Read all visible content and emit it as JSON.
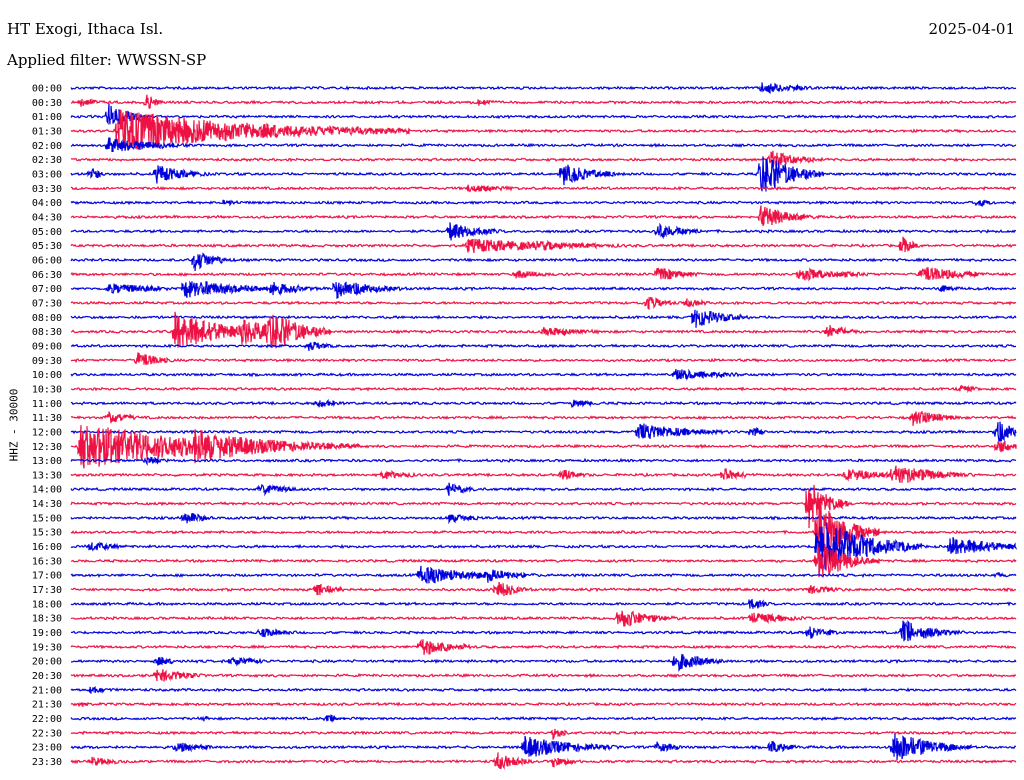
{
  "header": {
    "station": "HT Exogi, Ithaca Isl.",
    "date": "2025-04-01",
    "filter": "Applied filter: WWSSN-SP"
  },
  "chart_data": {
    "type": "line",
    "title": "HT Exogi, Ithaca Isl.",
    "ylabel": "HHZ - 30000",
    "trace_colors": [
      "#0000dd",
      "#ee1144"
    ],
    "row_labels": [
      "00:00",
      "00:30",
      "01:00",
      "01:30",
      "02:00",
      "02:30",
      "03:00",
      "03:30",
      "04:00",
      "04:30",
      "05:00",
      "05:30",
      "06:00",
      "06:30",
      "07:00",
      "07:30",
      "08:00",
      "08:30",
      "09:00",
      "09:30",
      "10:00",
      "10:30",
      "11:00",
      "11:30",
      "12:00",
      "12:30",
      "13:00",
      "13:30",
      "14:00",
      "14:30",
      "15:00",
      "15:30",
      "16:00",
      "16:30",
      "17:00",
      "17:30",
      "18:00",
      "18:30",
      "19:00",
      "19:30",
      "20:00",
      "20:30",
      "21:00",
      "21:30",
      "22:00",
      "22:30",
      "23:00",
      "23:30"
    ],
    "events": [
      {
        "row": 0,
        "x": 0.73,
        "amp": 6,
        "dur": 0.04
      },
      {
        "row": 1,
        "x": 0.01,
        "amp": 5,
        "dur": 0.02
      },
      {
        "row": 1,
        "x": 0.43,
        "amp": 4,
        "dur": 0.02
      },
      {
        "row": 1,
        "x": 0.08,
        "amp": 9,
        "dur": 0.01
      },
      {
        "row": 2,
        "x": 0.04,
        "amp": 14,
        "dur": 0.02
      },
      {
        "row": 3,
        "x": 0.05,
        "amp": 22,
        "dur": 0.14
      },
      {
        "row": 4,
        "x": 0.04,
        "amp": 8,
        "dur": 0.05
      },
      {
        "row": 5,
        "x": 0.74,
        "amp": 10,
        "dur": 0.03
      },
      {
        "row": 6,
        "x": 0.02,
        "amp": 8,
        "dur": 0.01
      },
      {
        "row": 6,
        "x": 0.09,
        "amp": 10,
        "dur": 0.03
      },
      {
        "row": 6,
        "x": 0.52,
        "amp": 12,
        "dur": 0.03
      },
      {
        "row": 6,
        "x": 0.73,
        "amp": 24,
        "dur": 0.03
      },
      {
        "row": 7,
        "x": 0.42,
        "amp": 4,
        "dur": 0.05
      },
      {
        "row": 8,
        "x": 0.16,
        "amp": 3,
        "dur": 0.03
      },
      {
        "row": 8,
        "x": 0.96,
        "amp": 6,
        "dur": 0.01
      },
      {
        "row": 9,
        "x": 0.73,
        "amp": 12,
        "dur": 0.03
      },
      {
        "row": 10,
        "x": 0.4,
        "amp": 10,
        "dur": 0.03
      },
      {
        "row": 10,
        "x": 0.62,
        "amp": 8,
        "dur": 0.03
      },
      {
        "row": 11,
        "x": 0.42,
        "amp": 8,
        "dur": 0.08
      },
      {
        "row": 11,
        "x": 0.49,
        "amp": 5,
        "dur": 0.08
      },
      {
        "row": 11,
        "x": 0.88,
        "amp": 10,
        "dur": 0.01
      },
      {
        "row": 12,
        "x": 0.13,
        "amp": 12,
        "dur": 0.02
      },
      {
        "row": 13,
        "x": 0.47,
        "amp": 5,
        "dur": 0.03
      },
      {
        "row": 13,
        "x": 0.62,
        "amp": 7,
        "dur": 0.03
      },
      {
        "row": 13,
        "x": 0.77,
        "amp": 7,
        "dur": 0.05
      },
      {
        "row": 13,
        "x": 0.9,
        "amp": 9,
        "dur": 0.04
      },
      {
        "row": 14,
        "x": 0.04,
        "amp": 6,
        "dur": 0.05
      },
      {
        "row": 14,
        "x": 0.12,
        "amp": 10,
        "dur": 0.06
      },
      {
        "row": 14,
        "x": 0.21,
        "amp": 8,
        "dur": 0.03
      },
      {
        "row": 14,
        "x": 0.28,
        "amp": 10,
        "dur": 0.04
      },
      {
        "row": 14,
        "x": 0.92,
        "amp": 4,
        "dur": 0.02
      },
      {
        "row": 15,
        "x": 0.61,
        "amp": 7,
        "dur": 0.02
      },
      {
        "row": 15,
        "x": 0.65,
        "amp": 5,
        "dur": 0.02
      },
      {
        "row": 16,
        "x": 0.66,
        "amp": 11,
        "dur": 0.03
      },
      {
        "row": 17,
        "x": 0.11,
        "amp": 20,
        "dur": 0.05
      },
      {
        "row": 17,
        "x": 0.18,
        "amp": 14,
        "dur": 0.04
      },
      {
        "row": 17,
        "x": 0.21,
        "amp": 24,
        "dur": 0.03
      },
      {
        "row": 17,
        "x": 0.5,
        "amp": 5,
        "dur": 0.05
      },
      {
        "row": 17,
        "x": 0.8,
        "amp": 8,
        "dur": 0.02
      },
      {
        "row": 18,
        "x": 0.25,
        "amp": 6,
        "dur": 0.02
      },
      {
        "row": 19,
        "x": 0.07,
        "amp": 10,
        "dur": 0.02
      },
      {
        "row": 20,
        "x": 0.64,
        "amp": 6,
        "dur": 0.05
      },
      {
        "row": 21,
        "x": 0.94,
        "amp": 4,
        "dur": 0.02
      },
      {
        "row": 22,
        "x": 0.26,
        "amp": 5,
        "dur": 0.02
      },
      {
        "row": 22,
        "x": 0.53,
        "amp": 4,
        "dur": 0.03
      },
      {
        "row": 23,
        "x": 0.04,
        "amp": 7,
        "dur": 0.02
      },
      {
        "row": 23,
        "x": 0.89,
        "amp": 9,
        "dur": 0.03
      },
      {
        "row": 24,
        "x": 0.6,
        "amp": 10,
        "dur": 0.05
      },
      {
        "row": 24,
        "x": 0.72,
        "amp": 7,
        "dur": 0.01
      },
      {
        "row": 24,
        "x": 0.98,
        "amp": 12,
        "dur": 0.02
      },
      {
        "row": 25,
        "x": 0.01,
        "amp": 24,
        "dur": 0.12
      },
      {
        "row": 25,
        "x": 0.13,
        "amp": 18,
        "dur": 0.08
      },
      {
        "row": 25,
        "x": 0.98,
        "amp": 8,
        "dur": 0.02
      },
      {
        "row": 26,
        "x": 0.08,
        "amp": 4,
        "dur": 0.02
      },
      {
        "row": 27,
        "x": 0.33,
        "amp": 5,
        "dur": 0.03
      },
      {
        "row": 27,
        "x": 0.52,
        "amp": 6,
        "dur": 0.02
      },
      {
        "row": 27,
        "x": 0.69,
        "amp": 7,
        "dur": 0.02
      },
      {
        "row": 27,
        "x": 0.82,
        "amp": 7,
        "dur": 0.04
      },
      {
        "row": 27,
        "x": 0.87,
        "amp": 12,
        "dur": 0.04
      },
      {
        "row": 28,
        "x": 0.2,
        "amp": 6,
        "dur": 0.03
      },
      {
        "row": 28,
        "x": 0.4,
        "amp": 7,
        "dur": 0.02
      },
      {
        "row": 29,
        "x": 0.78,
        "amp": 26,
        "dur": 0.02
      },
      {
        "row": 30,
        "x": 0.12,
        "amp": 7,
        "dur": 0.02
      },
      {
        "row": 30,
        "x": 0.4,
        "amp": 5,
        "dur": 0.03
      },
      {
        "row": 31,
        "x": 0.79,
        "amp": 32,
        "dur": 0.03
      },
      {
        "row": 32,
        "x": 0.02,
        "amp": 5,
        "dur": 0.03
      },
      {
        "row": 32,
        "x": 0.79,
        "amp": 30,
        "dur": 0.05
      },
      {
        "row": 32,
        "x": 0.93,
        "amp": 10,
        "dur": 0.05
      },
      {
        "row": 33,
        "x": 0.79,
        "amp": 22,
        "dur": 0.03
      },
      {
        "row": 34,
        "x": 0.37,
        "amp": 10,
        "dur": 0.05
      },
      {
        "row": 34,
        "x": 0.44,
        "amp": 8,
        "dur": 0.03
      },
      {
        "row": 34,
        "x": 0.98,
        "amp": 4,
        "dur": 0.01
      },
      {
        "row": 35,
        "x": 0.26,
        "amp": 8,
        "dur": 0.02
      },
      {
        "row": 35,
        "x": 0.45,
        "amp": 10,
        "dur": 0.02
      },
      {
        "row": 35,
        "x": 0.78,
        "amp": 5,
        "dur": 0.03
      },
      {
        "row": 36,
        "x": 0.72,
        "amp": 10,
        "dur": 0.01
      },
      {
        "row": 37,
        "x": 0.58,
        "amp": 12,
        "dur": 0.03
      },
      {
        "row": 37,
        "x": 0.72,
        "amp": 6,
        "dur": 0.04
      },
      {
        "row": 38,
        "x": 0.2,
        "amp": 5,
        "dur": 0.03
      },
      {
        "row": 38,
        "x": 0.78,
        "amp": 8,
        "dur": 0.02
      },
      {
        "row": 38,
        "x": 0.88,
        "amp": 14,
        "dur": 0.03
      },
      {
        "row": 39,
        "x": 0.37,
        "amp": 10,
        "dur": 0.03
      },
      {
        "row": 40,
        "x": 0.09,
        "amp": 5,
        "dur": 0.02
      },
      {
        "row": 40,
        "x": 0.17,
        "amp": 5,
        "dur": 0.03
      },
      {
        "row": 40,
        "x": 0.64,
        "amp": 10,
        "dur": 0.03
      },
      {
        "row": 41,
        "x": 0.09,
        "amp": 8,
        "dur": 0.03
      },
      {
        "row": 42,
        "x": 0.02,
        "amp": 4,
        "dur": 0.02
      },
      {
        "row": 43,
        "x": 0.01,
        "amp": 4,
        "dur": 0.01
      },
      {
        "row": 44,
        "x": 0.14,
        "amp": 3,
        "dur": 0.01
      },
      {
        "row": 44,
        "x": 0.27,
        "amp": 4,
        "dur": 0.03
      },
      {
        "row": 45,
        "x": 0.51,
        "amp": 8,
        "dur": 0.01
      },
      {
        "row": 46,
        "x": 0.11,
        "amp": 6,
        "dur": 0.03
      },
      {
        "row": 46,
        "x": 0.48,
        "amp": 12,
        "dur": 0.05
      },
      {
        "row": 46,
        "x": 0.62,
        "amp": 6,
        "dur": 0.02
      },
      {
        "row": 46,
        "x": 0.74,
        "amp": 7,
        "dur": 0.02
      },
      {
        "row": 46,
        "x": 0.87,
        "amp": 16,
        "dur": 0.04
      },
      {
        "row": 47,
        "x": 0.02,
        "amp": 5,
        "dur": 0.03
      },
      {
        "row": 47,
        "x": 0.45,
        "amp": 10,
        "dur": 0.02
      },
      {
        "row": 47,
        "x": 0.51,
        "amp": 6,
        "dur": 0.02
      }
    ]
  }
}
